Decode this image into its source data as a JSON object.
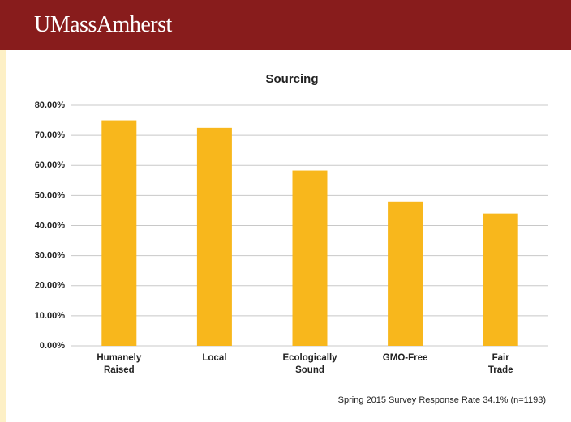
{
  "header": {
    "logo": "UMassAmherst"
  },
  "chart_data": {
    "type": "bar",
    "title": "Sourcing",
    "categories": [
      [
        "Humanely",
        "Raised"
      ],
      [
        "Local"
      ],
      [
        "Ecologically",
        "Sound"
      ],
      [
        "GMO-Free"
      ],
      [
        "Fair",
        "Trade"
      ]
    ],
    "values": [
      75,
      72.5,
      58.3,
      48,
      44
    ],
    "color": "#f8b71c",
    "ylim": [
      0,
      80
    ],
    "yticks": [
      {
        "value": 0,
        "label": "0.00%"
      },
      {
        "value": 10,
        "label": "10.00%"
      },
      {
        "value": 20,
        "label": "20.00%"
      },
      {
        "value": 30,
        "label": "30.00%"
      },
      {
        "value": 40,
        "label": "40.00%"
      },
      {
        "value": 50,
        "label": "50.00%"
      },
      {
        "value": 60,
        "label": "60.00%"
      },
      {
        "value": 70,
        "label": "70.00%"
      },
      {
        "value": 80,
        "label": "80.00%"
      }
    ],
    "grid": true,
    "note": "Spring 2015 Survey Response Rate 34.1% (n=1193)"
  }
}
